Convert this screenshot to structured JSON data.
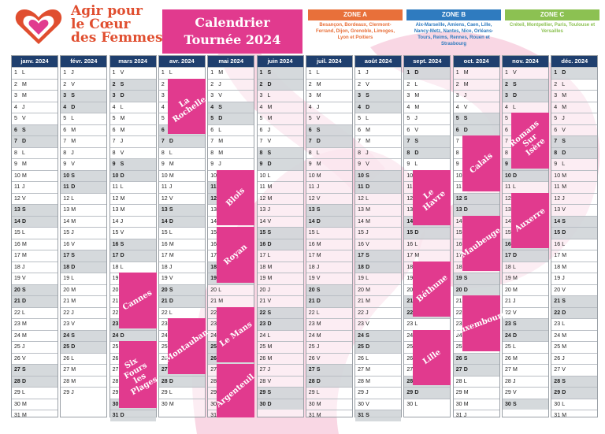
{
  "brand": {
    "line1": "Agir pour",
    "line2": "le Cœur",
    "line3": "des Femmes"
  },
  "title": {
    "line1": "Calendrier",
    "line2": "Tournée 2024"
  },
  "zones": [
    {
      "label": "ZONE A",
      "color": "#e8703a",
      "cities": "Besançon, Bordeaux, Clermont-Ferrand, Dijon, Grenoble, Limoges, Lyon et Poitiers"
    },
    {
      "label": "ZONE B",
      "color": "#2f7bbf",
      "cities": "Aix-Marseille, Amiens, Caen, Lille, Nancy-Metz, Nantes, Nice, Orléans-Tours, Reims, Rennes, Rouen et Strasbourg"
    },
    {
      "label": "ZONE C",
      "color": "#8cc152",
      "cities": "Créteil, Montpellier, Paris, Toulouse et Versailles"
    }
  ],
  "colors": {
    "header": "#1f3f6e",
    "pink": "#e13a8e",
    "zone_a": "#e8703a",
    "zone_b": "#2f7bbf",
    "zone_c": "#8cc152",
    "weekend": "#ced2d6"
  },
  "weekday_letters": [
    "L",
    "M",
    "M",
    "J",
    "V",
    "S",
    "D"
  ],
  "months": [
    {
      "label": "janv. 2024",
      "days": 31,
      "start": 0
    },
    {
      "label": "févr. 2024",
      "days": 29,
      "start": 3
    },
    {
      "label": "mars 2024",
      "days": 31,
      "start": 4
    },
    {
      "label": "avr. 2024",
      "days": 30,
      "start": 0
    },
    {
      "label": "mai 2024",
      "days": 31,
      "start": 2
    },
    {
      "label": "juin 2024",
      "days": 30,
      "start": 5
    },
    {
      "label": "juil. 2024",
      "days": 31,
      "start": 0
    },
    {
      "label": "août 2024",
      "days": 31,
      "start": 3
    },
    {
      "label": "sept. 2024",
      "days": 30,
      "start": 6
    },
    {
      "label": "oct. 2024",
      "days": 31,
      "start": 1
    },
    {
      "label": "nov. 2024",
      "days": 30,
      "start": 4
    },
    {
      "label": "déc. 2024",
      "days": 31,
      "start": 6
    }
  ],
  "tour_stops": [
    {
      "city": "La Rochelle",
      "month": 3,
      "day_from": 2,
      "day_to": 6
    },
    {
      "city": "Blois",
      "month": 4,
      "day_from": 10,
      "day_to": 14
    },
    {
      "city": "Royan",
      "month": 4,
      "day_from": 15,
      "day_to": 19
    },
    {
      "city": "Le Mans",
      "month": 4,
      "day_from": 22,
      "day_to": 26
    },
    {
      "city": "Argenteuil",
      "month": 4,
      "day_from": 27,
      "day_to": 31
    },
    {
      "city": "Cannes",
      "month": 2,
      "day_from": 19,
      "day_to": 23
    },
    {
      "city": "Montauban",
      "month": 3,
      "day_from": 23,
      "day_to": 27
    },
    {
      "city": "Six Fours les Plages",
      "month": 2,
      "day_from": 25,
      "day_to": 30
    },
    {
      "city": "Le Havre",
      "month": 8,
      "day_from": 10,
      "day_to": 14
    },
    {
      "city": "Béthune",
      "month": 8,
      "day_from": 18,
      "day_to": 22
    },
    {
      "city": "Lille",
      "month": 8,
      "day_from": 24,
      "day_to": 28
    },
    {
      "city": "Calais",
      "month": 9,
      "day_from": 7,
      "day_to": 11
    },
    {
      "city": "Maubeuge",
      "month": 9,
      "day_from": 14,
      "day_to": 18
    },
    {
      "city": "Luxembourg",
      "month": 9,
      "day_from": 21,
      "day_to": 25
    },
    {
      "city": "Romans Sur Isère",
      "month": 10,
      "day_from": 5,
      "day_to": 9
    },
    {
      "city": "Auxerre",
      "month": 10,
      "day_from": 12,
      "day_to": 16
    }
  ]
}
